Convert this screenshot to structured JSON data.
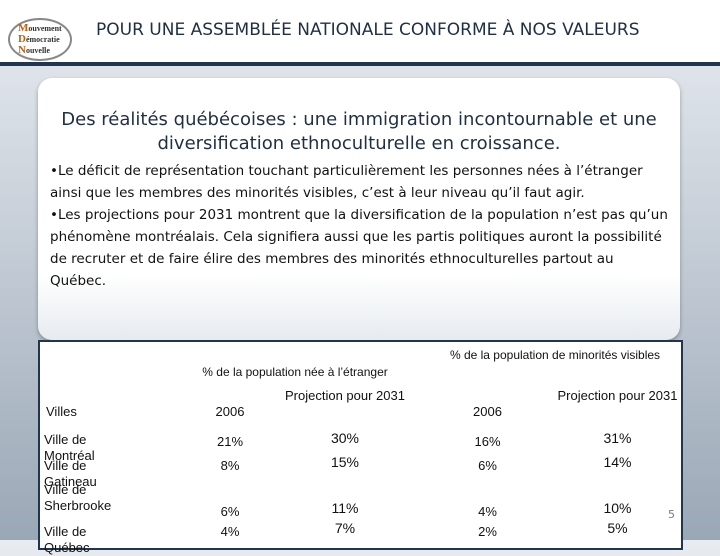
{
  "header": {
    "logo": [
      "Mouvement",
      "Démocratie",
      "Nouvelle"
    ],
    "title": "POUR UNE ASSEMBLÉE NATIONALE CONFORME À NOS VALEURS"
  },
  "box": {
    "heading": "Des réalités québécoises : une immigration incontournable et une diversification ethnoculturelle en croissance.",
    "bullets": [
      "•Le déficit de représentation touchant particulièrement les personnes nées à l’étranger ainsi que les membres des minorités visibles, c’est à leur niveau qu’il faut agir.",
      "•Les projections pour 2031 montrent que la diversification de la population n’est pas qu’un phénomène montréalais. Cela signifiera aussi que les partis politiques auront la possibilité de recruter et de faire élire des membres des minorités ethnoculturelles partout au Québec."
    ]
  },
  "table": {
    "groups": [
      "% de la population née à l’étranger",
      "% de la population de minorités visibles"
    ],
    "columns": [
      "Villes",
      "2006",
      "Projection pour 2031",
      "2006",
      "Projection pour 2031"
    ],
    "rows": [
      [
        "Ville de Montréal",
        "21%",
        "30%",
        "16%",
        "31%"
      ],
      [
        "Ville de Gatineau",
        "8%",
        "15%",
        "6%",
        "14%"
      ],
      [
        "Ville de Sherbrooke",
        "6%",
        "11%",
        "4%",
        "10%"
      ],
      [
        "Ville de Québec",
        "4%",
        "7%",
        "2%",
        "5%"
      ]
    ]
  },
  "page_number": "5"
}
